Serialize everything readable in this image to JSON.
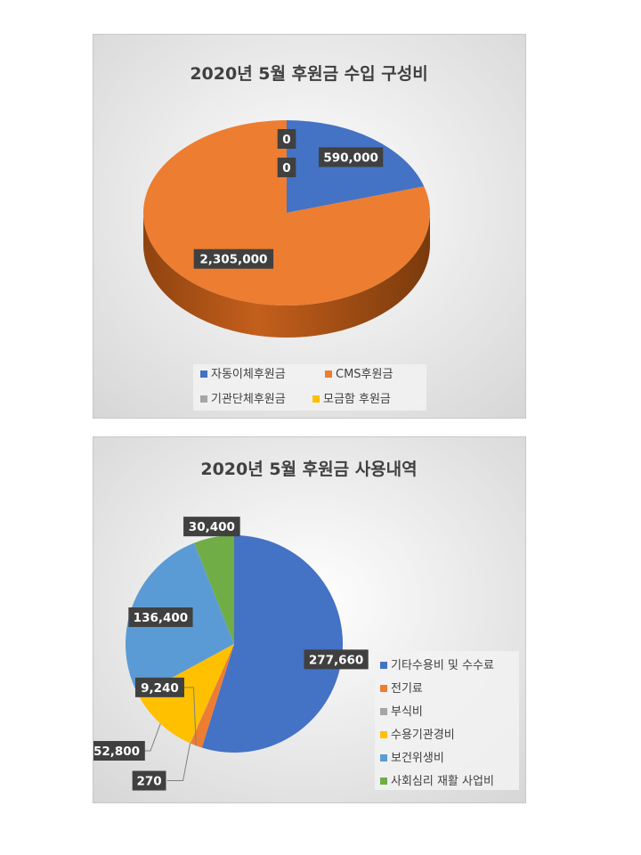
{
  "chart_data": [
    {
      "type": "pie",
      "style": "3d",
      "title": "2020년 5월 후원금 수입 구성비",
      "categories": [
        "자동이체후원금",
        "CMS후원금",
        "기관단체후원금",
        "모금함 후원금"
      ],
      "values": [
        590000,
        2305000,
        0,
        0
      ],
      "data_labels": [
        "590,000",
        "2,305,000",
        "0",
        "0"
      ],
      "colors": [
        "#4472c4",
        "#ed7d31",
        "#a5a5a5",
        "#ffc000"
      ],
      "legend": "bottom"
    },
    {
      "type": "pie",
      "title": "2020년 5월 후원금 사용내역",
      "categories": [
        "기타수용비 및 수수료",
        "전기료",
        "부식비",
        "수용기관경비",
        "보건위생비",
        "사회심리 재활 사업비"
      ],
      "values": [
        277660,
        9240,
        270,
        52800,
        136400,
        30400
      ],
      "data_labels": [
        "277,660",
        "9,240",
        "270",
        "52,800",
        "136,400",
        "30,400"
      ],
      "colors": [
        "#4472c4",
        "#ed7d31",
        "#a5a5a5",
        "#ffc000",
        "#5b9bd5",
        "#70ad47"
      ],
      "legend": "right"
    }
  ]
}
